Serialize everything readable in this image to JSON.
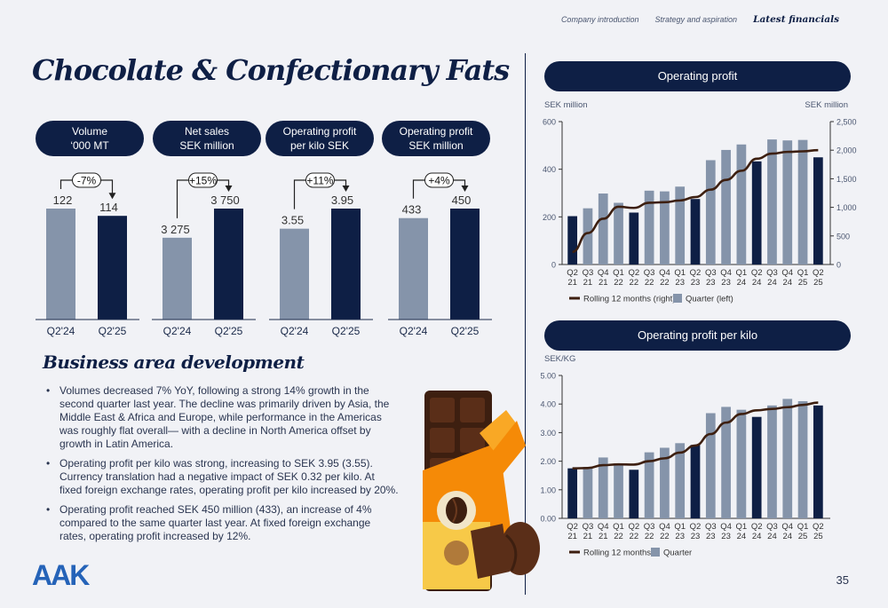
{
  "nav": {
    "items": [
      "Company introduction",
      "Strategy and aspiration"
    ],
    "active": "Latest financials"
  },
  "title": "Chocolate & Confectionary Fats",
  "kpis": [
    {
      "line1": "Volume",
      "line2": "‘000 MT",
      "change": "-7%",
      "prev_label": "122",
      "curr_label": "114",
      "prev_value": 122,
      "curr_value": 114
    },
    {
      "line1": "Net sales",
      "line2": "SEK million",
      "change": "+15%",
      "prev_label": "3 275",
      "curr_label": "3 750",
      "prev_value": 3275,
      "curr_value": 3750
    },
    {
      "line1": "Operating profit",
      "line2": "per kilo SEK",
      "change": "+11%",
      "prev_label": "3.55",
      "curr_label": "3.95",
      "prev_value": 3.55,
      "curr_value": 3.95
    },
    {
      "line1": "Operating profit",
      "line2": "SEK million",
      "change": "+4%",
      "prev_label": "433",
      "curr_label": "450",
      "prev_value": 433,
      "curr_value": 450
    }
  ],
  "kpi_categories": [
    "Q2'24",
    "Q2'25"
  ],
  "section_title": "Business area development",
  "bullets": [
    "Volumes decreased 7% YoY, following a strong 14% growth in the second quarter last year. The decline was primarily driven by Asia, the Middle East & Africa and Europe, while performance in the Americas was roughly flat overall— with a decline in North America offset by growth in Latin America.",
    "Operating profit per kilo was strong, increasing to SEK 3.95 (3.55). Currency translation had a negative impact of SEK 0.32 per kilo. At fixed foreign exchange rates, operating profit per kilo increased by 20%.",
    "Operating profit reached SEK 450 million (433), an increase of 4% compared to the same quarter last year. At fixed foreign exchange rates, operating profit increased by 12%."
  ],
  "logo": "AAK",
  "page_number": "35",
  "colors": {
    "navy": "#0e1f45",
    "steel": "#8594aa",
    "line": "#3d1f10",
    "logo": "#2563b8"
  },
  "chart_data": [
    {
      "type": "bar",
      "title": "Operating profit",
      "ylabel_left": "SEK million",
      "ylabel_right": "SEK million",
      "categories": [
        "Q2 21",
        "Q3 21",
        "Q4 21",
        "Q1 22",
        "Q2 22",
        "Q3 22",
        "Q4 22",
        "Q1 23",
        "Q2 23",
        "Q3 23",
        "Q4 23",
        "Q1 24",
        "Q2 24",
        "Q3 24",
        "Q4 24",
        "Q1 25",
        "Q2 25"
      ],
      "ylim_left": [
        0,
        600
      ],
      "yticks_left": [
        0,
        200,
        400,
        600
      ],
      "ylim_right": [
        0,
        2500
      ],
      "yticks_right": [
        0,
        500,
        1000,
        1500,
        2000,
        2500
      ],
      "highlight_quarter": "Q2",
      "series": [
        {
          "name": "Quarter (left)",
          "axis": "left",
          "values": [
            203,
            236,
            298,
            259,
            218,
            310,
            307,
            327,
            275,
            438,
            481,
            504,
            433,
            525,
            521,
            523,
            450
          ]
        },
        {
          "name": "Rolling 12 months (right)",
          "axis": "right",
          "type": "line",
          "values": [
            220,
            550,
            800,
            1010,
            990,
            1080,
            1090,
            1120,
            1180,
            1310,
            1480,
            1640,
            1850,
            1940,
            1970,
            1980,
            2000
          ]
        }
      ],
      "legend": [
        "Rolling 12 months (right)",
        "Quarter (left)"
      ]
    },
    {
      "type": "bar",
      "title": "Operating profit per kilo",
      "ylabel_left": "SEK/KG",
      "categories": [
        "Q2 21",
        "Q3 21",
        "Q4 21",
        "Q1 22",
        "Q2 22",
        "Q3 22",
        "Q4 22",
        "Q1 23",
        "Q2 23",
        "Q3 23",
        "Q4 23",
        "Q1 24",
        "Q2 24",
        "Q3 24",
        "Q4 24",
        "Q1 25",
        "Q2 25"
      ],
      "ylim_left": [
        0,
        5
      ],
      "yticks_left": [
        "0.00",
        "1.00",
        "2.00",
        "3.00",
        "4.00",
        "5.00"
      ],
      "highlight_quarter": "Q2",
      "series": [
        {
          "name": "Quarter",
          "axis": "left",
          "values": [
            1.75,
            1.8,
            2.13,
            1.92,
            1.7,
            2.31,
            2.47,
            2.63,
            2.57,
            3.68,
            3.9,
            3.8,
            3.55,
            3.95,
            4.18,
            4.1,
            3.95
          ]
        },
        {
          "name": "Rolling 12 months",
          "axis": "left",
          "type": "line",
          "values": [
            1.75,
            1.76,
            1.86,
            1.89,
            1.88,
            2.0,
            2.1,
            2.3,
            2.55,
            2.95,
            3.35,
            3.65,
            3.78,
            3.83,
            3.89,
            3.97,
            4.05
          ]
        }
      ],
      "legend": [
        "Rolling 12 months",
        "Quarter"
      ]
    }
  ]
}
